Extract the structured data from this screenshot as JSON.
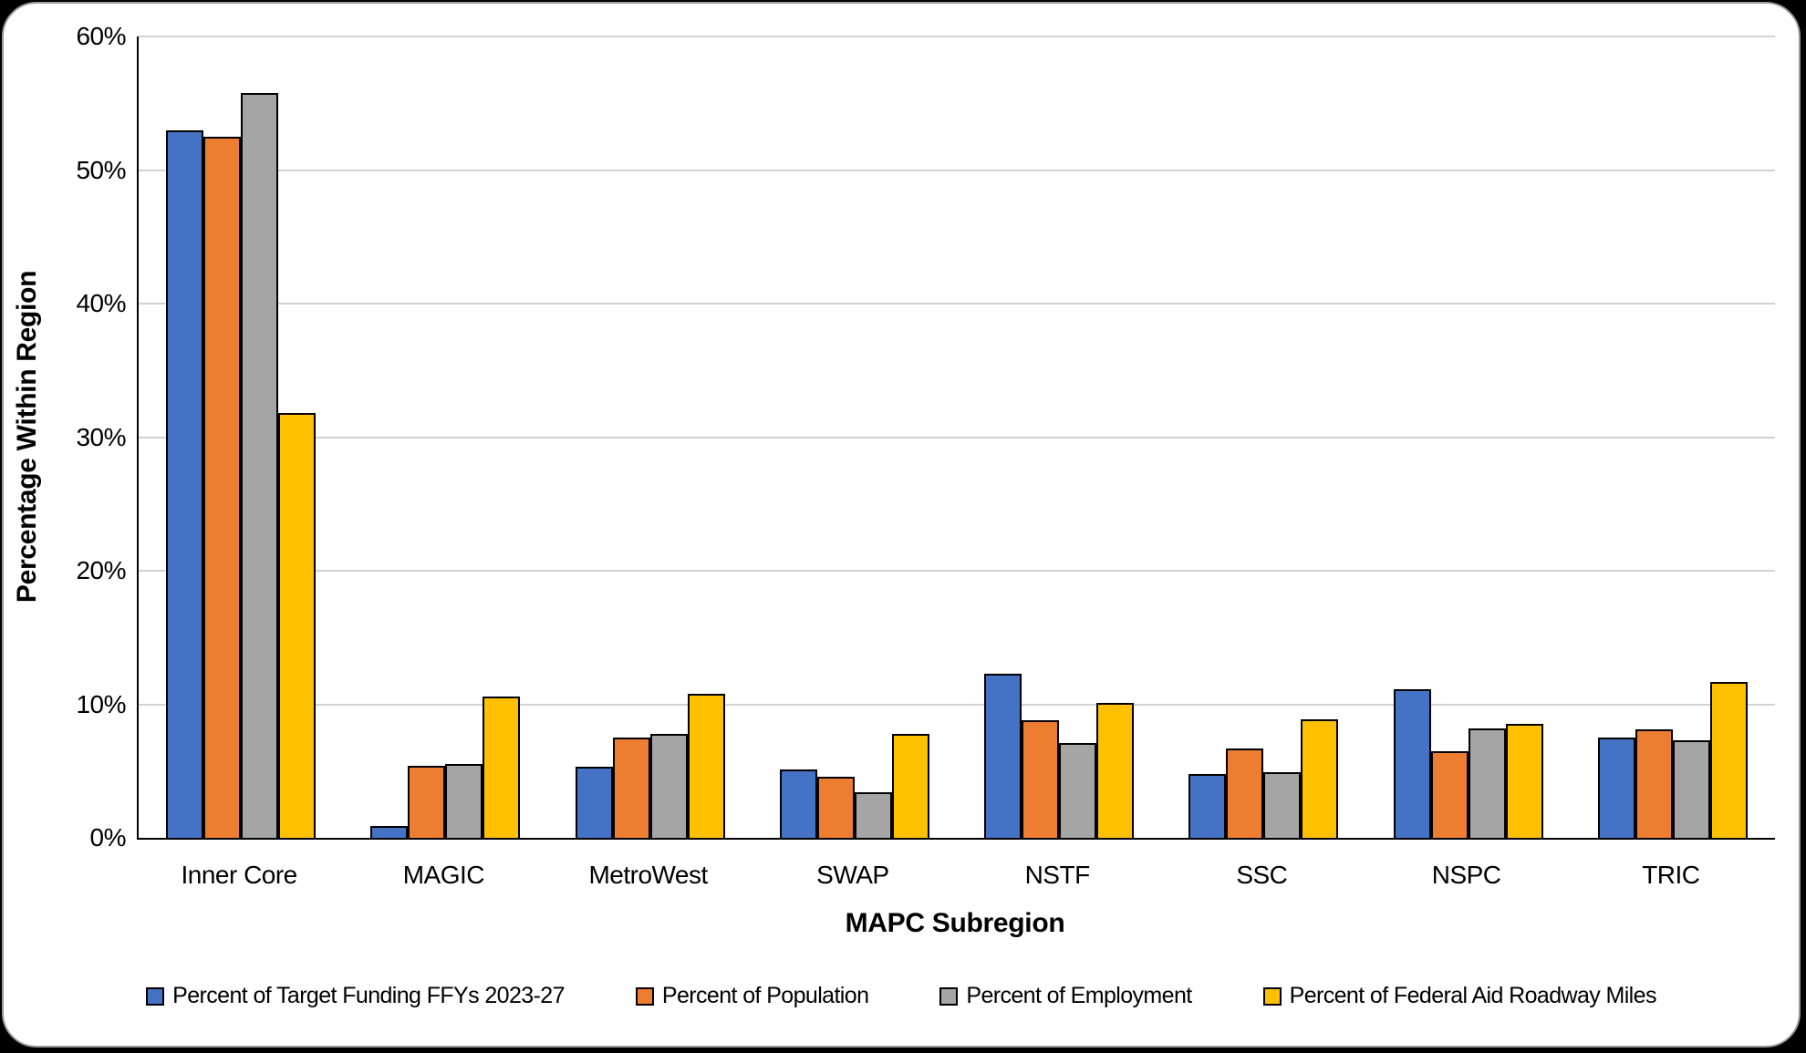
{
  "chart_data": {
    "type": "bar",
    "title": "",
    "xlabel": "MAPC Subregion",
    "ylabel": "Percentage Within Region",
    "categories": [
      "Inner Core",
      "MAGIC",
      "MetroWest",
      "SWAP",
      "NSTF",
      "SSC",
      "NSPC",
      "TRIC"
    ],
    "series": [
      {
        "name": "Percent of Target Funding FFYs 2023-27",
        "color": "#4472C4",
        "values": [
          53.0,
          0.9,
          5.3,
          5.1,
          12.3,
          4.8,
          11.1,
          7.5
        ]
      },
      {
        "name": "Percent of Population",
        "color": "#ED7D31",
        "values": [
          52.5,
          5.4,
          7.5,
          4.6,
          8.8,
          6.7,
          6.5,
          8.1
        ]
      },
      {
        "name": "Percent of Employment",
        "color": "#A5A5A5",
        "values": [
          55.8,
          5.5,
          7.8,
          3.4,
          7.1,
          4.9,
          8.2,
          7.3
        ]
      },
      {
        "name": "Percent of Federal Aid Roadway Miles",
        "color": "#FFC000",
        "values": [
          31.8,
          10.6,
          10.8,
          7.8,
          10.1,
          8.9,
          8.5,
          11.7
        ]
      }
    ],
    "ylim": [
      0,
      60
    ],
    "y_tick_step": 10,
    "y_tick_labels": [
      "0%",
      "10%",
      "20%",
      "30%",
      "40%",
      "50%",
      "60%"
    ],
    "grid": true,
    "gridline_color": "#d2d2d2",
    "axis_color": "#000000",
    "legend_position": "bottom"
  }
}
